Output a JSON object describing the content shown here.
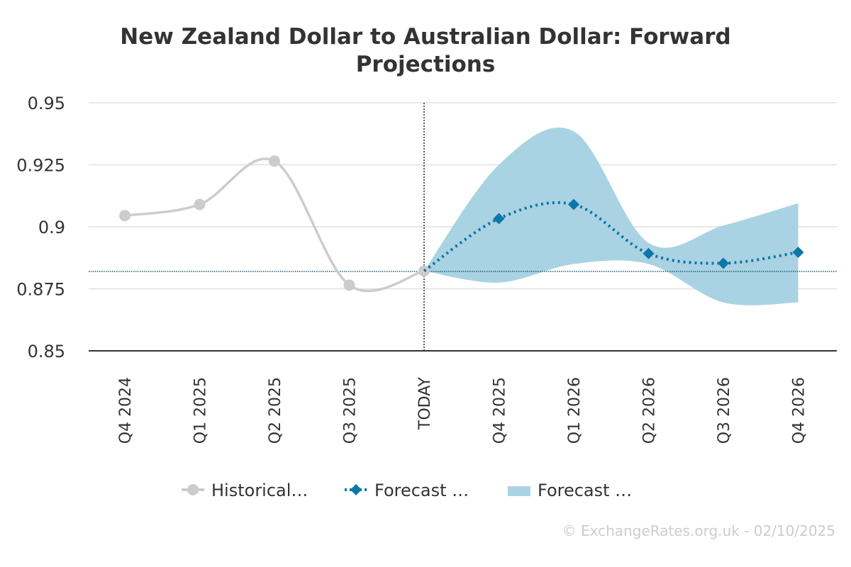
{
  "chart_data": {
    "type": "line",
    "title_lines": [
      "New Zealand Dollar to Australian Dollar: Forward",
      "Projections"
    ],
    "categories": [
      "Q4 2024",
      "Q1 2025",
      "Q2 2025",
      "Q3 2025",
      "TODAY",
      "Q4 2025",
      "Q1 2026",
      "Q2 2026",
      "Q3 2026",
      "Q4 2026"
    ],
    "ylim": [
      0.85,
      0.95
    ],
    "yticks": [
      0.85,
      0.875,
      0.9,
      0.925,
      0.95
    ],
    "ytick_labels": [
      "0.85",
      "0.875",
      "0.9",
      "0.925",
      "0.95"
    ],
    "today_index": 4,
    "current_rate": 0.882,
    "series": [
      {
        "name": "Historical…",
        "kind": "line",
        "color": "#cccccc",
        "points": [
          [
            0,
            0.9045
          ],
          [
            1,
            0.909
          ],
          [
            2,
            0.9265
          ],
          [
            3,
            0.8765
          ],
          [
            4,
            0.8822
          ]
        ]
      },
      {
        "name": "Forecast …",
        "kind": "line",
        "color": "#0e76a8",
        "points": [
          [
            4,
            0.8822
          ],
          [
            5,
            0.9033
          ],
          [
            6,
            0.909
          ],
          [
            7,
            0.8892
          ],
          [
            8,
            0.8853
          ],
          [
            9,
            0.8897
          ]
        ]
      },
      {
        "name": "Forecast …",
        "kind": "range",
        "color": "#a9d3e3",
        "upper": [
          [
            4,
            0.8822
          ],
          [
            5,
            0.925
          ],
          [
            6,
            0.9385
          ],
          [
            7,
            0.8935
          ],
          [
            8,
            0.9005
          ],
          [
            9,
            0.9095
          ]
        ],
        "lower": [
          [
            4,
            0.8822
          ],
          [
            5,
            0.8775
          ],
          [
            6,
            0.885
          ],
          [
            7,
            0.885
          ],
          [
            8,
            0.8695
          ],
          [
            9,
            0.8695
          ]
        ]
      }
    ],
    "credit": "© ExchangeRates.org.uk - 02/10/2025"
  }
}
